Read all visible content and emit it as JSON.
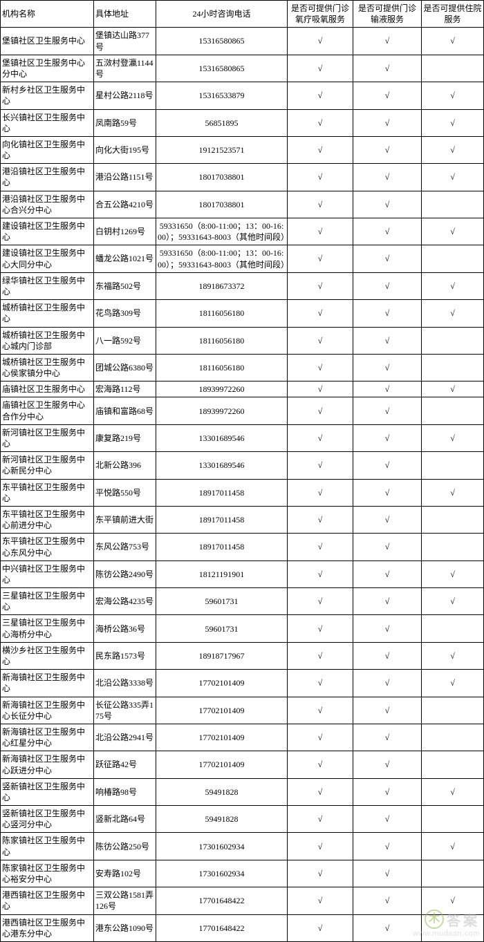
{
  "columns": [
    "机构名称",
    "具体地址",
    "24小时咨询电话",
    "是否可提供门诊氧疗吸氧服务",
    "是否可提供门诊输液服务",
    "是否可提供住院服务"
  ],
  "check": "√",
  "rows": [
    {
      "name": "堡镇社区卫生服务中心",
      "addr": "堡镇达山路377号",
      "phone": "15316580865",
      "c1": true,
      "c2": true,
      "c3": true
    },
    {
      "name": "堡镇社区卫生服务中心分中心",
      "addr": "五滧村登瀛1144号",
      "phone": "15316580865",
      "c1": true,
      "c2": true,
      "c3": false
    },
    {
      "name": "新村乡社区卫生服务中心",
      "addr": "星村公路2118号",
      "phone": "15316533879",
      "c1": true,
      "c2": true,
      "c3": true
    },
    {
      "name": "长兴镇社区卫生服务中心",
      "addr": "凤南路59号",
      "phone": "56851895",
      "c1": true,
      "c2": true,
      "c3": true
    },
    {
      "name": "向化镇社区卫生服务中心",
      "addr": "向化大街195号",
      "phone": "19121523571",
      "c1": true,
      "c2": true,
      "c3": true
    },
    {
      "name": "港沿镇社区卫生服务中心",
      "addr": "港沿公路1151号",
      "phone": "18017038801",
      "c1": true,
      "c2": true,
      "c3": true
    },
    {
      "name": "港沿镇社区卫生服务中心合兴分中心",
      "addr": "合五公路4210号",
      "phone": "18017038801",
      "c1": true,
      "c2": true,
      "c3": false
    },
    {
      "name": "建设镇社区卫生服务中心",
      "addr": "白钥村1269号",
      "phone": "59331650（8:00-11:00；13：00-16:00）；59331643-8003（其他时间段）",
      "c1": true,
      "c2": true,
      "c3": true
    },
    {
      "name": "建设镇社区卫生服务中心大同分中心",
      "addr": "蟠龙公路1021号",
      "phone": "59331650（8:00-11:00；13：00-16:00）；59331643-8003（其他时间段）",
      "c1": true,
      "c2": true,
      "c3": false
    },
    {
      "name": "绿华镇社区卫生服务中心",
      "addr": "东福路502号",
      "phone": "18918673372",
      "c1": true,
      "c2": true,
      "c3": true
    },
    {
      "name": "城桥镇社区卫生服务中心",
      "addr": "花鸟路309号",
      "phone": "18116056180",
      "c1": true,
      "c2": true,
      "c3": true
    },
    {
      "name": "城桥镇社区卫生服务中心城内门诊部",
      "addr": "八一路592号",
      "phone": "18116056180",
      "c1": true,
      "c2": true,
      "c3": false
    },
    {
      "name": "城桥镇社区卫生服务中心侯家镇分中心",
      "addr": "团城公路6380号",
      "phone": "18116056180",
      "c1": true,
      "c2": true,
      "c3": false
    },
    {
      "name": "庙镇社区卫生服务中心",
      "addr": "宏海路112号",
      "phone": "18939972260",
      "c1": true,
      "c2": true,
      "c3": true
    },
    {
      "name": "庙镇社区卫生服务中心合作分中心",
      "addr": "庙镇和富路68号",
      "phone": "18939972260",
      "c1": true,
      "c2": true,
      "c3": false
    },
    {
      "name": "新河镇社区卫生服务中心",
      "addr": "康复路219号",
      "phone": "13301689546",
      "c1": true,
      "c2": true,
      "c3": true
    },
    {
      "name": "新河镇社区卫生服务中心新民分中心",
      "addr": "北新公路396",
      "phone": "13301689546",
      "c1": true,
      "c2": true,
      "c3": false
    },
    {
      "name": "东平镇社区卫生服务中心",
      "addr": "平悦路550号",
      "phone": "18917011458",
      "c1": true,
      "c2": true,
      "c3": true
    },
    {
      "name": "东平镇社区卫生服务中心前进分中心",
      "addr": "东平镇前进大街",
      "phone": "18917011458",
      "c1": true,
      "c2": true,
      "c3": false
    },
    {
      "name": "东平镇社区卫生服务中心东风分中心",
      "addr": "东风公路753号",
      "phone": "18917011458",
      "c1": true,
      "c2": true,
      "c3": false
    },
    {
      "name": "中兴镇社区卫生服务中心",
      "addr": "陈彷公路2490号",
      "phone": "18121191901",
      "c1": true,
      "c2": true,
      "c3": true
    },
    {
      "name": "三星镇社区卫生服务中心",
      "addr": "宏海公路4235号",
      "phone": "59601731",
      "c1": true,
      "c2": true,
      "c3": true
    },
    {
      "name": "三星镇社区卫生服务中心海桥分中心",
      "addr": "海桥公路36号",
      "phone": "59601731",
      "c1": true,
      "c2": true,
      "c3": false
    },
    {
      "name": "横沙乡社区卫生服务中心",
      "addr": "民东路1573号",
      "phone": "18918717967",
      "c1": true,
      "c2": true,
      "c3": true
    },
    {
      "name": "新海镇社区卫生服务中心",
      "addr": "北沿公路3338号",
      "phone": "17702101409",
      "c1": true,
      "c2": true,
      "c3": true
    },
    {
      "name": "新海镇社区卫生服务中心长征分中心",
      "addr": "长征公路335弄175号",
      "phone": "17702101409",
      "c1": true,
      "c2": true,
      "c3": false
    },
    {
      "name": "新海镇社区卫生服务中心红星分中心",
      "addr": "北沿公路2941号",
      "phone": "17702101409",
      "c1": true,
      "c2": true,
      "c3": false
    },
    {
      "name": "新海镇社区卫生服务中心跃进分中心",
      "addr": "跃征路42号",
      "phone": "17702101409",
      "c1": true,
      "c2": true,
      "c3": false
    },
    {
      "name": "竖新镇社区卫生服务中心",
      "addr": "响椿路98号",
      "phone": "59491828",
      "c1": true,
      "c2": true,
      "c3": true
    },
    {
      "name": "竖新镇社区卫生服务中心竖河分中心",
      "addr": "竖新北路64号",
      "phone": "59491828",
      "c1": true,
      "c2": true,
      "c3": false
    },
    {
      "name": "陈家镇社区卫生服务中心",
      "addr": "陈彷公路250号",
      "phone": "17301602934",
      "c1": true,
      "c2": true,
      "c3": true
    },
    {
      "name": "陈家镇社区卫生服务中心裕安分中心",
      "addr": "安寿路102号",
      "phone": "17301602934",
      "c1": true,
      "c2": true,
      "c3": false
    },
    {
      "name": "港西镇社区卫生服务中心",
      "addr": "三双公路1581弄126号",
      "phone": "17701648422",
      "c1": true,
      "c2": true,
      "c3": true
    },
    {
      "name": "港西镇社区卫生服务中心港东分中心",
      "addr": "港东公路1090号",
      "phone": "17701648422",
      "c1": true,
      "c2": true,
      "c3": false
    }
  ],
  "watermark": {
    "badge": "木",
    "title": "答案",
    "url": "www.mudaan.com"
  }
}
